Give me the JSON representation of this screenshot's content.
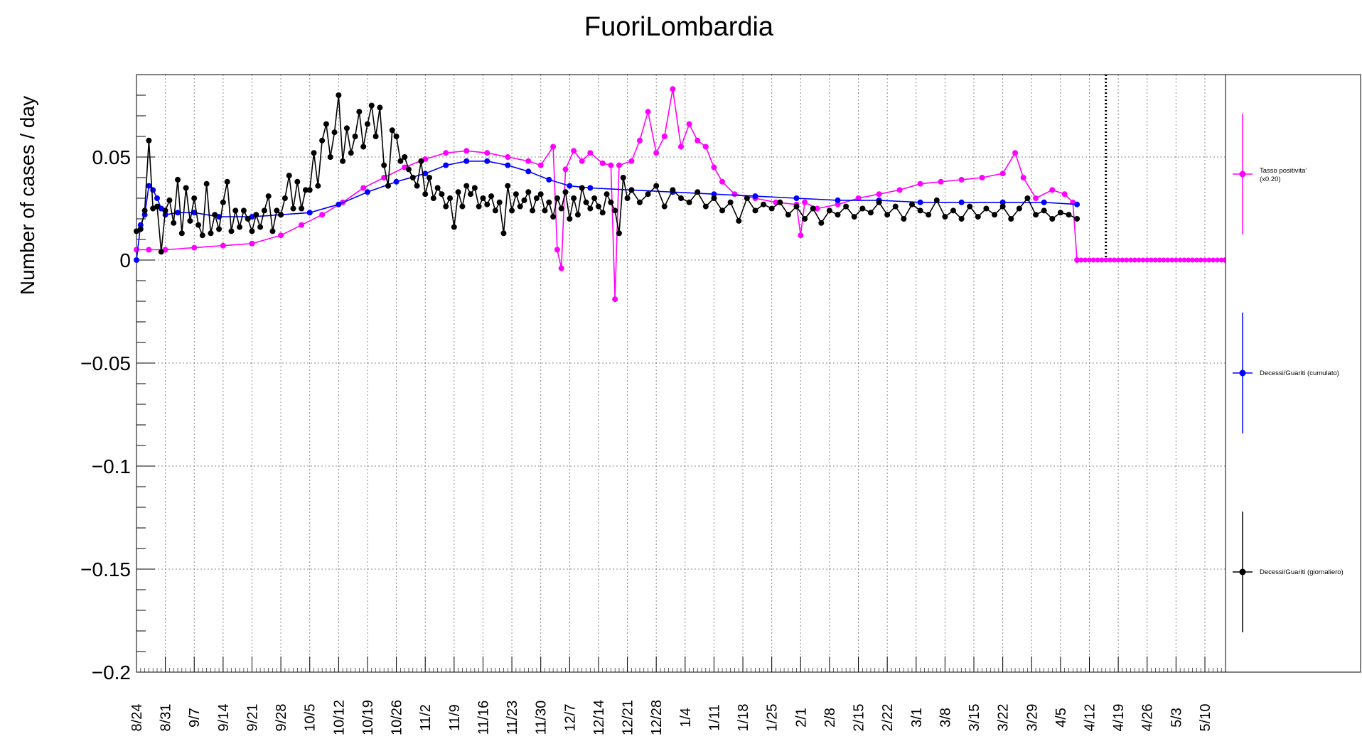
{
  "chart_data": {
    "type": "line",
    "title": "FuoriLombardia",
    "ylabel": "Number of cases / day",
    "xlabel": "",
    "ylim": [
      -0.2,
      0.09
    ],
    "y_ticks": [
      -0.2,
      -0.15,
      -0.1,
      -0.05,
      0,
      0.05
    ],
    "y_tick_labels": [
      "−0.2",
      "−0.15",
      "−0.1",
      "−0.05",
      "0",
      "0.05"
    ],
    "x_range_days": [
      0,
      264
    ],
    "x_tick_labels": [
      "8/24",
      "8/31",
      "9/7",
      "9/14",
      "9/21",
      "9/28",
      "10/5",
      "10/12",
      "10/19",
      "10/26",
      "11/2",
      "11/9",
      "11/16",
      "11/23",
      "11/30",
      "12/7",
      "12/14",
      "12/21",
      "12/28",
      "1/4",
      "1/11",
      "1/18",
      "1/25",
      "2/1",
      "2/8",
      "2/15",
      "2/22",
      "3/1",
      "3/8",
      "3/15",
      "3/22",
      "3/29",
      "4/5",
      "4/12",
      "4/19",
      "4/26",
      "5/3",
      "5/10"
    ],
    "x_tick_step_days": 7,
    "grid": true,
    "marker_line_day": 235,
    "legend_position": "right",
    "series": [
      {
        "name": "Tasso positivita'\n(x0.20)",
        "color": "#ff00ff",
        "points": [
          [
            0,
            0.005
          ],
          [
            3,
            0.005
          ],
          [
            7,
            0.005
          ],
          [
            14,
            0.006
          ],
          [
            21,
            0.007
          ],
          [
            28,
            0.008
          ],
          [
            35,
            0.012
          ],
          [
            40,
            0.017
          ],
          [
            45,
            0.022
          ],
          [
            50,
            0.028
          ],
          [
            55,
            0.035
          ],
          [
            60,
            0.04
          ],
          [
            65,
            0.045
          ],
          [
            70,
            0.049
          ],
          [
            75,
            0.052
          ],
          [
            80,
            0.053
          ],
          [
            85,
            0.052
          ],
          [
            90,
            0.05
          ],
          [
            95,
            0.048
          ],
          [
            98,
            0.046
          ],
          [
            101,
            0.055
          ],
          [
            102,
            0.005
          ],
          [
            103,
            -0.004
          ],
          [
            104,
            0.044
          ],
          [
            106,
            0.053
          ],
          [
            108,
            0.048
          ],
          [
            110,
            0.052
          ],
          [
            113,
            0.047
          ],
          [
            115,
            0.046
          ],
          [
            116,
            -0.019
          ],
          [
            117,
            0.046
          ],
          [
            120,
            0.048
          ],
          [
            122,
            0.058
          ],
          [
            124,
            0.072
          ],
          [
            126,
            0.052
          ],
          [
            128,
            0.06
          ],
          [
            130,
            0.083
          ],
          [
            132,
            0.055
          ],
          [
            134,
            0.066
          ],
          [
            136,
            0.058
          ],
          [
            138,
            0.055
          ],
          [
            140,
            0.045
          ],
          [
            142,
            0.038
          ],
          [
            145,
            0.032
          ],
          [
            150,
            0.03
          ],
          [
            155,
            0.028
          ],
          [
            160,
            0.027
          ],
          [
            161,
            0.012
          ],
          [
            162,
            0.028
          ],
          [
            165,
            0.025
          ],
          [
            170,
            0.027
          ],
          [
            175,
            0.03
          ],
          [
            180,
            0.032
          ],
          [
            185,
            0.034
          ],
          [
            190,
            0.037
          ],
          [
            195,
            0.038
          ],
          [
            200,
            0.039
          ],
          [
            205,
            0.04
          ],
          [
            210,
            0.042
          ],
          [
            213,
            0.052
          ],
          [
            215,
            0.04
          ],
          [
            218,
            0.03
          ],
          [
            222,
            0.034
          ],
          [
            225,
            0.032
          ],
          [
            227,
            0.028
          ],
          [
            228,
            0.0
          ],
          [
            264,
            0.0
          ]
        ]
      },
      {
        "name": "Decessi/Guariti (cumulato)",
        "color": "#0000ff",
        "points": [
          [
            0,
            0.0
          ],
          [
            1,
            0.017
          ],
          [
            2,
            0.022
          ],
          [
            3,
            0.036
          ],
          [
            4,
            0.034
          ],
          [
            5,
            0.03
          ],
          [
            6,
            0.025
          ],
          [
            7,
            0.022
          ],
          [
            10,
            0.023
          ],
          [
            14,
            0.023
          ],
          [
            20,
            0.021
          ],
          [
            28,
            0.021
          ],
          [
            35,
            0.022
          ],
          [
            42,
            0.023
          ],
          [
            49,
            0.027
          ],
          [
            56,
            0.033
          ],
          [
            63,
            0.038
          ],
          [
            70,
            0.042
          ],
          [
            75,
            0.046
          ],
          [
            80,
            0.048
          ],
          [
            85,
            0.048
          ],
          [
            90,
            0.046
          ],
          [
            95,
            0.043
          ],
          [
            100,
            0.039
          ],
          [
            105,
            0.036
          ],
          [
            110,
            0.035
          ],
          [
            120,
            0.034
          ],
          [
            130,
            0.033
          ],
          [
            140,
            0.032
          ],
          [
            150,
            0.031
          ],
          [
            160,
            0.03
          ],
          [
            170,
            0.029
          ],
          [
            180,
            0.029
          ],
          [
            190,
            0.028
          ],
          [
            200,
            0.028
          ],
          [
            210,
            0.028
          ],
          [
            220,
            0.028
          ],
          [
            228,
            0.027
          ]
        ]
      },
      {
        "name": "Decessi/Guariti (giornaliero)",
        "color": "#000000",
        "points": [
          [
            0,
            0.014
          ],
          [
            1,
            0.015
          ],
          [
            2,
            0.024
          ],
          [
            3,
            0.058
          ],
          [
            4,
            0.025
          ],
          [
            5,
            0.026
          ],
          [
            6,
            0.004
          ],
          [
            7,
            0.024
          ],
          [
            8,
            0.029
          ],
          [
            9,
            0.018
          ],
          [
            10,
            0.039
          ],
          [
            11,
            0.013
          ],
          [
            12,
            0.035
          ],
          [
            13,
            0.019
          ],
          [
            14,
            0.03
          ],
          [
            15,
            0.017
          ],
          [
            16,
            0.012
          ],
          [
            17,
            0.037
          ],
          [
            18,
            0.013
          ],
          [
            19,
            0.022
          ],
          [
            20,
            0.015
          ],
          [
            21,
            0.028
          ],
          [
            22,
            0.038
          ],
          [
            23,
            0.014
          ],
          [
            24,
            0.024
          ],
          [
            25,
            0.016
          ],
          [
            26,
            0.024
          ],
          [
            27,
            0.02
          ],
          [
            28,
            0.014
          ],
          [
            29,
            0.022
          ],
          [
            30,
            0.016
          ],
          [
            31,
            0.024
          ],
          [
            32,
            0.031
          ],
          [
            33,
            0.014
          ],
          [
            34,
            0.024
          ],
          [
            35,
            0.022
          ],
          [
            36,
            0.03
          ],
          [
            37,
            0.041
          ],
          [
            38,
            0.025
          ],
          [
            39,
            0.038
          ],
          [
            40,
            0.025
          ],
          [
            41,
            0.034
          ],
          [
            42,
            0.034
          ],
          [
            43,
            0.052
          ],
          [
            44,
            0.036
          ],
          [
            45,
            0.058
          ],
          [
            46,
            0.066
          ],
          [
            47,
            0.05
          ],
          [
            48,
            0.062
          ],
          [
            49,
            0.08
          ],
          [
            50,
            0.048
          ],
          [
            51,
            0.064
          ],
          [
            52,
            0.052
          ],
          [
            53,
            0.06
          ],
          [
            54,
            0.072
          ],
          [
            55,
            0.055
          ],
          [
            56,
            0.066
          ],
          [
            57,
            0.075
          ],
          [
            58,
            0.06
          ],
          [
            59,
            0.074
          ],
          [
            60,
            0.046
          ],
          [
            61,
            0.036
          ],
          [
            62,
            0.063
          ],
          [
            63,
            0.06
          ],
          [
            64,
            0.048
          ],
          [
            65,
            0.05
          ],
          [
            66,
            0.044
          ],
          [
            67,
            0.04
          ],
          [
            68,
            0.036
          ],
          [
            69,
            0.048
          ],
          [
            70,
            0.032
          ],
          [
            71,
            0.04
          ],
          [
            72,
            0.03
          ],
          [
            73,
            0.035
          ],
          [
            74,
            0.032
          ],
          [
            75,
            0.026
          ],
          [
            76,
            0.03
          ],
          [
            77,
            0.016
          ],
          [
            78,
            0.033
          ],
          [
            79,
            0.026
          ],
          [
            80,
            0.036
          ],
          [
            81,
            0.032
          ],
          [
            82,
            0.035
          ],
          [
            83,
            0.026
          ],
          [
            84,
            0.03
          ],
          [
            85,
            0.027
          ],
          [
            86,
            0.031
          ],
          [
            87,
            0.024
          ],
          [
            88,
            0.028
          ],
          [
            89,
            0.013
          ],
          [
            90,
            0.036
          ],
          [
            91,
            0.024
          ],
          [
            92,
            0.032
          ],
          [
            93,
            0.026
          ],
          [
            94,
            0.029
          ],
          [
            95,
            0.033
          ],
          [
            96,
            0.024
          ],
          [
            97,
            0.03
          ],
          [
            98,
            0.032
          ],
          [
            99,
            0.024
          ],
          [
            100,
            0.028
          ],
          [
            101,
            0.021
          ],
          [
            102,
            0.03
          ],
          [
            103,
            0.025
          ],
          [
            104,
            0.033
          ],
          [
            105,
            0.02
          ],
          [
            106,
            0.03
          ],
          [
            107,
            0.022
          ],
          [
            108,
            0.035
          ],
          [
            109,
            0.028
          ],
          [
            110,
            0.025
          ],
          [
            111,
            0.03
          ],
          [
            112,
            0.026
          ],
          [
            113,
            0.023
          ],
          [
            114,
            0.032
          ],
          [
            115,
            0.028
          ],
          [
            116,
            0.024
          ],
          [
            117,
            0.013
          ],
          [
            118,
            0.04
          ],
          [
            119,
            0.03
          ],
          [
            120,
            0.034
          ],
          [
            122,
            0.028
          ],
          [
            124,
            0.032
          ],
          [
            126,
            0.036
          ],
          [
            128,
            0.026
          ],
          [
            130,
            0.034
          ],
          [
            132,
            0.03
          ],
          [
            134,
            0.028
          ],
          [
            136,
            0.033
          ],
          [
            138,
            0.026
          ],
          [
            140,
            0.03
          ],
          [
            142,
            0.024
          ],
          [
            144,
            0.028
          ],
          [
            146,
            0.019
          ],
          [
            148,
            0.03
          ],
          [
            150,
            0.024
          ],
          [
            152,
            0.027
          ],
          [
            154,
            0.025
          ],
          [
            156,
            0.028
          ],
          [
            158,
            0.022
          ],
          [
            160,
            0.026
          ],
          [
            162,
            0.02
          ],
          [
            164,
            0.025
          ],
          [
            166,
            0.018
          ],
          [
            168,
            0.024
          ],
          [
            170,
            0.022
          ],
          [
            172,
            0.026
          ],
          [
            174,
            0.021
          ],
          [
            176,
            0.025
          ],
          [
            178,
            0.023
          ],
          [
            180,
            0.028
          ],
          [
            182,
            0.022
          ],
          [
            184,
            0.026
          ],
          [
            186,
            0.02
          ],
          [
            188,
            0.027
          ],
          [
            190,
            0.024
          ],
          [
            192,
            0.022
          ],
          [
            194,
            0.029
          ],
          [
            196,
            0.021
          ],
          [
            198,
            0.024
          ],
          [
            200,
            0.02
          ],
          [
            202,
            0.026
          ],
          [
            204,
            0.021
          ],
          [
            206,
            0.025
          ],
          [
            208,
            0.022
          ],
          [
            210,
            0.026
          ],
          [
            212,
            0.02
          ],
          [
            214,
            0.025
          ],
          [
            216,
            0.03
          ],
          [
            218,
            0.022
          ],
          [
            220,
            0.024
          ],
          [
            222,
            0.02
          ],
          [
            224,
            0.023
          ],
          [
            226,
            0.022
          ],
          [
            228,
            0.02
          ]
        ]
      }
    ]
  }
}
